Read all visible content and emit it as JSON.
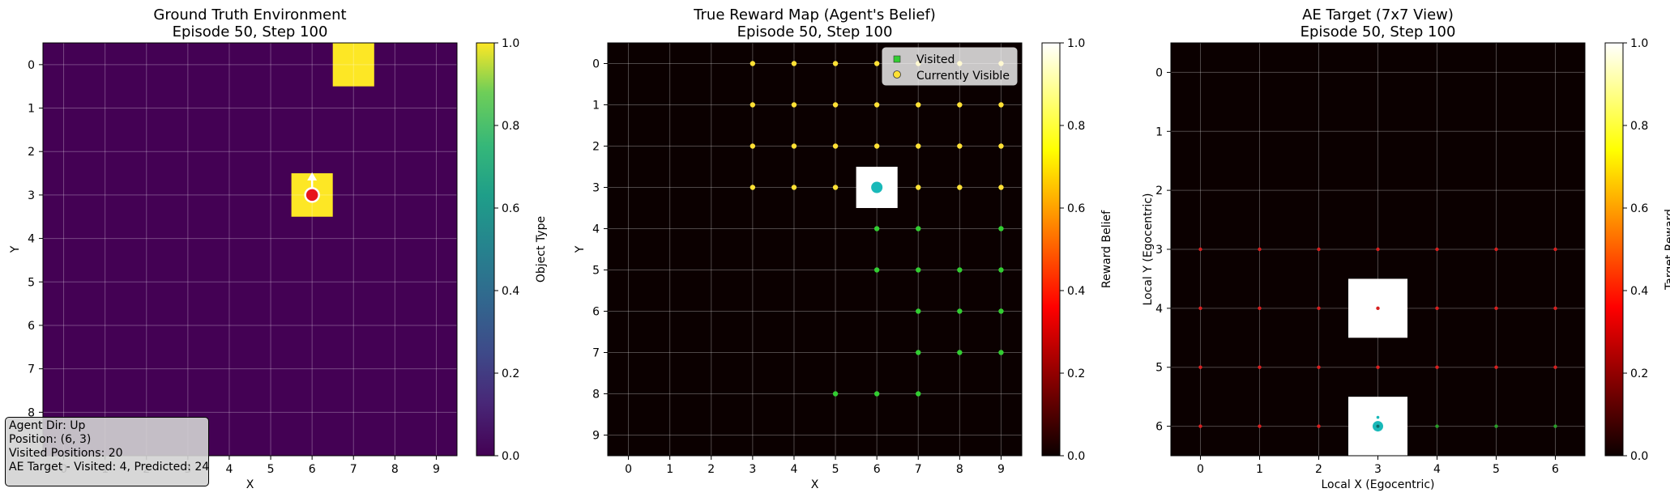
{
  "chart_data": [
    {
      "type": "heatmap",
      "title_line1": "Ground Truth Environment",
      "title_line2": "Episode 50, Step 100",
      "xlabel": "X",
      "ylabel": "Y",
      "x_ticks": [
        "0",
        "1",
        "2",
        "3",
        "4",
        "5",
        "6",
        "7",
        "8",
        "9"
      ],
      "y_ticks": [
        "0",
        "1",
        "2",
        "3",
        "4",
        "5",
        "6",
        "7",
        "8"
      ],
      "grid": true,
      "colormap": "viridis",
      "colorbar_label": "Object Type",
      "colorbar_ticks": [
        "0.0",
        "0.2",
        "0.4",
        "0.6",
        "0.8",
        "1.0"
      ],
      "colorbar_range": [
        0,
        1
      ],
      "background_value": 0.0,
      "cells": [
        {
          "x": 7,
          "y": 0,
          "value": 1.0
        },
        {
          "x": 6,
          "y": 3,
          "value": 1.0
        }
      ],
      "agent": {
        "x": 6,
        "y": 3,
        "direction": "Up",
        "color": "#e8141c"
      }
    },
    {
      "type": "heatmap",
      "title_line1": "True Reward Map (Agent's Belief)",
      "title_line2": "Episode 50, Step 100",
      "xlabel": "X",
      "ylabel": "Y",
      "x_ticks": [
        "0",
        "1",
        "2",
        "3",
        "4",
        "5",
        "6",
        "7",
        "8",
        "9"
      ],
      "y_ticks": [
        "0",
        "1",
        "2",
        "3",
        "4",
        "5",
        "6",
        "7",
        "8",
        "9"
      ],
      "grid": true,
      "colormap": "hot",
      "colorbar_label": "Reward Belief",
      "colorbar_ticks": [
        "0.0",
        "0.2",
        "0.4",
        "0.6",
        "0.8",
        "1.0"
      ],
      "colorbar_range": [
        0,
        1
      ],
      "background_value": 0.0,
      "cells": [
        {
          "x": 6,
          "y": 3,
          "value": 1.0
        }
      ],
      "legend": {
        "position": "top-right",
        "entries": [
          "Visited",
          "Currently Visible"
        ]
      },
      "visited_points": [
        {
          "x": 6,
          "y": 4
        },
        {
          "x": 7,
          "y": 4
        },
        {
          "x": 9,
          "y": 4
        },
        {
          "x": 6,
          "y": 5
        },
        {
          "x": 7,
          "y": 5
        },
        {
          "x": 8,
          "y": 5
        },
        {
          "x": 9,
          "y": 5
        },
        {
          "x": 7,
          "y": 6
        },
        {
          "x": 8,
          "y": 6
        },
        {
          "x": 9,
          "y": 6
        },
        {
          "x": 7,
          "y": 7
        },
        {
          "x": 8,
          "y": 7
        },
        {
          "x": 9,
          "y": 7
        },
        {
          "x": 5,
          "y": 8
        },
        {
          "x": 6,
          "y": 8
        },
        {
          "x": 7,
          "y": 8
        }
      ],
      "visible_points": [
        {
          "x": 3,
          "y": 0
        },
        {
          "x": 4,
          "y": 0
        },
        {
          "x": 5,
          "y": 0
        },
        {
          "x": 6,
          "y": 0
        },
        {
          "x": 7,
          "y": 0
        },
        {
          "x": 8,
          "y": 0
        },
        {
          "x": 9,
          "y": 0
        },
        {
          "x": 3,
          "y": 1
        },
        {
          "x": 4,
          "y": 1
        },
        {
          "x": 5,
          "y": 1
        },
        {
          "x": 6,
          "y": 1
        },
        {
          "x": 7,
          "y": 1
        },
        {
          "x": 8,
          "y": 1
        },
        {
          "x": 9,
          "y": 1
        },
        {
          "x": 3,
          "y": 2
        },
        {
          "x": 4,
          "y": 2
        },
        {
          "x": 5,
          "y": 2
        },
        {
          "x": 6,
          "y": 2
        },
        {
          "x": 7,
          "y": 2
        },
        {
          "x": 8,
          "y": 2
        },
        {
          "x": 9,
          "y": 2
        },
        {
          "x": 3,
          "y": 3
        },
        {
          "x": 4,
          "y": 3
        },
        {
          "x": 5,
          "y": 3
        },
        {
          "x": 7,
          "y": 3
        },
        {
          "x": 8,
          "y": 3
        },
        {
          "x": 9,
          "y": 3
        }
      ],
      "agent": {
        "x": 6,
        "y": 3,
        "color": "#19b9b9"
      },
      "visited_color": "#32cd32",
      "visible_color": "#ffe135"
    },
    {
      "type": "heatmap",
      "title_line1": "AE Target (7x7 View)",
      "title_line2": "Episode 50, Step 100",
      "xlabel": "Local X (Egocentric)",
      "ylabel": "Local Y (Egocentric)",
      "x_ticks": [
        "0",
        "1",
        "2",
        "3",
        "4",
        "5",
        "6"
      ],
      "y_ticks": [
        "0",
        "1",
        "2",
        "3",
        "4",
        "5",
        "6"
      ],
      "grid": true,
      "colormap": "hot",
      "colorbar_label": "Target Reward",
      "colorbar_ticks": [
        "0.0",
        "0.2",
        "0.4",
        "0.6",
        "0.8",
        "1.0"
      ],
      "colorbar_range": [
        0,
        1
      ],
      "background_value": 0.0,
      "cells": [
        {
          "x": 3,
          "y": 4,
          "value": 1.0
        },
        {
          "x": 3,
          "y": 6,
          "value": 1.0
        }
      ],
      "red_points": [
        {
          "x": 0,
          "y": 3
        },
        {
          "x": 1,
          "y": 3
        },
        {
          "x": 2,
          "y": 3
        },
        {
          "x": 3,
          "y": 3
        },
        {
          "x": 4,
          "y": 3
        },
        {
          "x": 5,
          "y": 3
        },
        {
          "x": 6,
          "y": 3
        },
        {
          "x": 0,
          "y": 4
        },
        {
          "x": 1,
          "y": 4
        },
        {
          "x": 2,
          "y": 4
        },
        {
          "x": 3,
          "y": 4
        },
        {
          "x": 4,
          "y": 4
        },
        {
          "x": 5,
          "y": 4
        },
        {
          "x": 6,
          "y": 4
        },
        {
          "x": 0,
          "y": 5
        },
        {
          "x": 1,
          "y": 5
        },
        {
          "x": 2,
          "y": 5
        },
        {
          "x": 3,
          "y": 5
        },
        {
          "x": 4,
          "y": 5
        },
        {
          "x": 5,
          "y": 5
        },
        {
          "x": 6,
          "y": 5
        },
        {
          "x": 0,
          "y": 6
        },
        {
          "x": 1,
          "y": 6
        },
        {
          "x": 2,
          "y": 6
        }
      ],
      "green_points": [
        {
          "x": 4,
          "y": 6
        },
        {
          "x": 5,
          "y": 6
        },
        {
          "x": 6,
          "y": 6
        }
      ],
      "agent": {
        "x": 3,
        "y": 6,
        "color": "#19b9b9"
      }
    }
  ],
  "info": {
    "agent_dir": "Agent Dir: Up",
    "position": "Position: (6, 3)",
    "visited": "Visited Positions: 20",
    "ae_target": "AE Target - Visited: 4, Predicted: 24"
  }
}
